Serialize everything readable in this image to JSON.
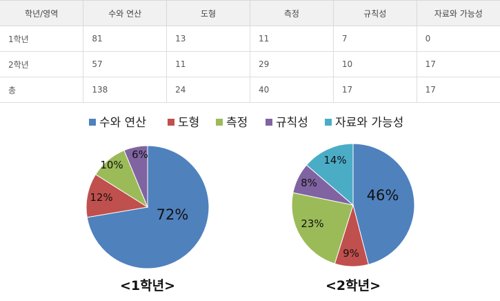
{
  "table": {
    "headers": [
      "학년/영역",
      "수와 연산",
      "도형",
      "측정",
      "규칙성",
      "자료와 가능성"
    ],
    "rows": [
      [
        "1학년",
        "81",
        "13",
        "11",
        "7",
        "0"
      ],
      [
        "2학년",
        "57",
        "11",
        "29",
        "10",
        "17"
      ],
      [
        "총",
        "138",
        "24",
        "40",
        "17",
        "17"
      ]
    ]
  },
  "chart_data": {
    "type": "pie",
    "legend_position": "top",
    "categories": [
      "수와 연산",
      "도형",
      "측정",
      "규칙성",
      "자료와 가능성"
    ],
    "colors": [
      "#4f81bd",
      "#c0504d",
      "#9bbb59",
      "#8064a2",
      "#4bacc6"
    ],
    "charts": [
      {
        "caption": "<1학년>",
        "values": [
          81,
          13,
          11,
          7,
          0
        ],
        "labels": [
          "72%",
          "12%",
          "10%",
          "6%",
          ""
        ]
      },
      {
        "caption": "<2학년>",
        "values": [
          57,
          11,
          29,
          10,
          17
        ],
        "labels": [
          "46%",
          "9%",
          "23%",
          "8%",
          "14%"
        ]
      }
    ]
  }
}
